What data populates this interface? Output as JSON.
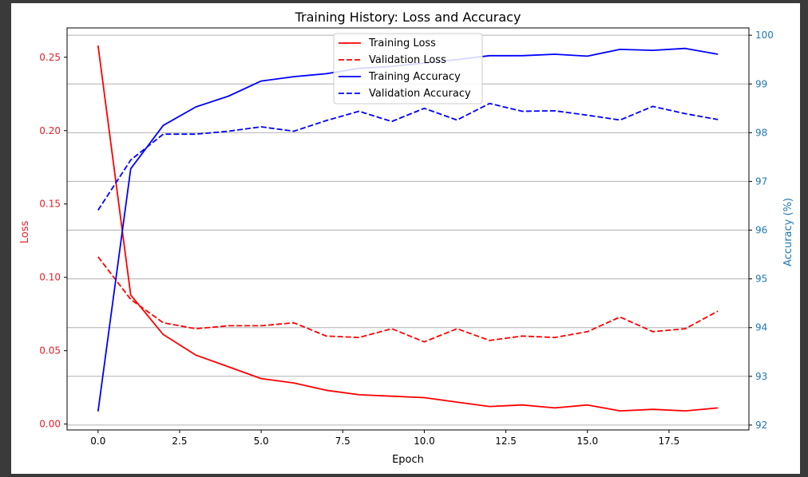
{
  "chart_data": {
    "type": "line",
    "title": "Training History: Loss and Accuracy",
    "xlabel": "Epoch",
    "ylabel_left": "Loss",
    "ylabel_right": "Accuracy (%)",
    "x": [
      0,
      1,
      2,
      3,
      4,
      5,
      6,
      7,
      8,
      9,
      10,
      11,
      12,
      13,
      14,
      15,
      16,
      17,
      18,
      19
    ],
    "xlim": [
      -0.95,
      19.95
    ],
    "xticks": [
      0.0,
      2.5,
      5.0,
      7.5,
      10.0,
      12.5,
      15.0,
      17.5
    ],
    "xtick_labels": [
      "0.0",
      "2.5",
      "5.0",
      "7.5",
      "10.0",
      "12.5",
      "15.0",
      "17.5"
    ],
    "ylim_left": [
      -0.004,
      0.27
    ],
    "yticks_left": [
      0.0,
      0.05,
      0.1,
      0.15,
      0.2,
      0.25
    ],
    "ytick_labels_left": [
      "0.00",
      "0.05",
      "0.10",
      "0.15",
      "0.20",
      "0.25"
    ],
    "ylim_right": [
      91.9,
      100.15
    ],
    "yticks_right": [
      92,
      93,
      94,
      95,
      96,
      97,
      98,
      99,
      100
    ],
    "ytick_labels_right": [
      "92",
      "93",
      "94",
      "95",
      "96",
      "97",
      "98",
      "99",
      "100"
    ],
    "grid": true,
    "legend_position": "top-center",
    "colors": {
      "left_axis": "#e8202a",
      "right_axis": "#1f77b4",
      "red": "#ff0000",
      "blue": "#0000ff"
    },
    "series": [
      {
        "name": "Training Loss",
        "axis": "left",
        "color": "#ff0000",
        "dashed": false,
        "values": [
          0.258,
          0.088,
          0.061,
          0.047,
          0.039,
          0.031,
          0.028,
          0.023,
          0.02,
          0.019,
          0.018,
          0.015,
          0.012,
          0.013,
          0.011,
          0.013,
          0.009,
          0.01,
          0.009,
          0.011
        ]
      },
      {
        "name": "Validation Loss",
        "axis": "left",
        "color": "#ff0000",
        "dashed": true,
        "values": [
          0.114,
          0.085,
          0.069,
          0.065,
          0.067,
          0.067,
          0.069,
          0.06,
          0.059,
          0.065,
          0.056,
          0.065,
          0.057,
          0.06,
          0.059,
          0.063,
          0.073,
          0.063,
          0.065,
          0.077
        ]
      },
      {
        "name": "Training Accuracy",
        "axis": "right",
        "color": "#0000ff",
        "dashed": false,
        "values": [
          92.28,
          97.26,
          98.15,
          98.53,
          98.75,
          99.06,
          99.15,
          99.21,
          99.32,
          99.36,
          99.43,
          99.5,
          99.58,
          99.58,
          99.61,
          99.57,
          99.71,
          99.69,
          99.73,
          99.61
        ]
      },
      {
        "name": "Validation Accuracy",
        "axis": "right",
        "color": "#0000ff",
        "dashed": true,
        "values": [
          96.41,
          97.44,
          97.97,
          97.97,
          98.03,
          98.12,
          98.03,
          98.25,
          98.44,
          98.23,
          98.5,
          98.26,
          98.6,
          98.44,
          98.45,
          98.36,
          98.26,
          98.54,
          98.39,
          98.27
        ]
      }
    ]
  }
}
